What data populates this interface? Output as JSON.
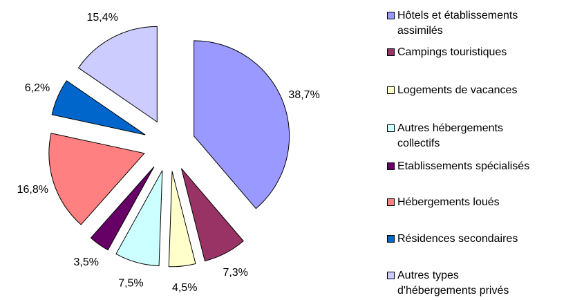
{
  "chart_data": {
    "type": "pie",
    "categories": [
      "Hôtels et établissements assimilés",
      "Campings touristiques",
      "Logements de vacances",
      "Autres hébergements collectifs",
      "Etablissements spécialisés",
      "Hébergements loués",
      "Résidences secondaires",
      "Autres types d'hébergements privés"
    ],
    "values": [
      38.7,
      7.3,
      4.5,
      7.5,
      3.5,
      16.8,
      6.2,
      15.4
    ],
    "value_labels": [
      "38,7%",
      "7,3%",
      "4,5%",
      "7,5%",
      "3,5%",
      "16,8%",
      "6,2%",
      "15,4%"
    ],
    "colors": [
      "#9999ff",
      "#993366",
      "#ffffcc",
      "#ccffff",
      "#660066",
      "#ff8080",
      "#0066cc",
      "#ccccff"
    ],
    "legend": "right"
  }
}
